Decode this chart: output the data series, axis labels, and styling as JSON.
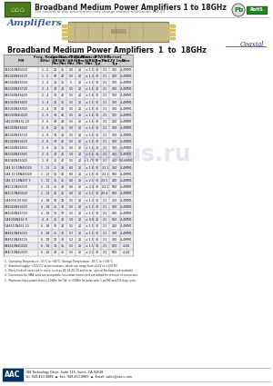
{
  "title_main": "Broadband Medium Power Amplifiers 1 to 18GHz",
  "subtitle": "The content of this specification may change without notification 101.09",
  "amplifiers_label": "Amplifiers",
  "coaxial_label": "Coaxial",
  "table_title": "Broadband Medium Power Amplifiers  1  to  18GHz",
  "rows": [
    [
      "CA1040N4S020",
      "1 - 2",
      "28",
      "35",
      "4.0",
      "20",
      "± 1.5",
      "30",
      "2:1",
      "300",
      "4L4MM1"
    ],
    [
      "CA2040N4S120",
      "1 - 2",
      "18",
      "24",
      "5.5",
      "20",
      "± 1.4",
      "30",
      "2:1",
      "200",
      "4L4MM1"
    ],
    [
      "CA2040N4S020",
      "2 - 4",
      "28",
      "35",
      "5",
      "20",
      "± 1.5",
      "30",
      "2:1",
      "300",
      "4L4MM1"
    ],
    [
      "CA2040N4S720",
      "2 - 4",
      "34",
      "41",
      "5.5",
      "20",
      "± 1.6",
      "30",
      "2:1",
      "300",
      "4L4MM1"
    ],
    [
      "CA2040N4S620",
      "2 - 4",
      "38",
      "46",
      "5.5",
      "20",
      "± 1.6",
      "30",
      "2:1",
      "300",
      "4L4MM1"
    ],
    [
      "CA2040N4S820",
      "2 - 4",
      "28",
      "35",
      "5.5",
      "20",
      "± 1.5",
      "30",
      "2:1",
      "300",
      "4L4MM1"
    ],
    [
      "CA2040N4S920",
      "2 - 4",
      "34",
      "41",
      "5.5",
      "20",
      "± 1.6",
      "30",
      "2:1",
      "300",
      "4L4MM1"
    ],
    [
      "CA2040N4G020",
      "2 - 6",
      "38",
      "46",
      "5.5",
      "20",
      "± 1.6",
      "30",
      "2:1",
      "300",
      "4L4MM1"
    ],
    [
      "CA2040N4S1 20",
      "2 - 6",
      "18",
      "24",
      "5.5",
      "20",
      "± 1.6",
      "30",
      "2:1",
      "200",
      "4L4MM1"
    ],
    [
      "CA2040N4S020",
      "2 - 8",
      "28",
      "35",
      "5.0",
      "20",
      "± 1.6",
      "30",
      "2:1",
      "300",
      "4L4MM1"
    ],
    [
      "CA2040N4S720",
      "2 - 8",
      "34",
      "41",
      "5.5",
      "20",
      "± 1.6",
      "30",
      "2:1",
      "300",
      "4L4MM1"
    ],
    [
      "CA2040N4S620",
      "2 - 8",
      "38",
      "46",
      "5.5",
      "20",
      "± 1.6",
      "30",
      "2:1",
      "300",
      "4L4MM1"
    ],
    [
      "CA2040N4S820",
      "2 - 8",
      "28",
      "35",
      "5.0",
      "20",
      "± 1.6",
      "30",
      "2:1",
      "300",
      "4L4MM1"
    ],
    [
      "CA2040N4S925",
      "2 - 8",
      "34",
      "41",
      "5.0",
      "20",
      "± 1.6",
      "30",
      "2:1",
      "400",
      "4L4MM1"
    ],
    [
      "CA4080N4S020",
      "1 - 8",
      "35",
      "40",
      "5.5",
      "20",
      "± 1.75",
      "50",
      "2:1",
      "450",
      "10L6MM1"
    ],
    [
      "CA4 10 10N4S020",
      "1 - 13",
      "25",
      "29",
      "6.0",
      "20",
      "± 1.6",
      "30",
      "2:2.1",
      "350",
      "4L4MM1"
    ],
    [
      "CA4 10 18N4S020",
      "1 - 13",
      "35",
      "40",
      "6.0",
      "20",
      "± 1.6",
      "30",
      "2:2.1",
      "500",
      "4L4MM1"
    ],
    [
      "CA4 10 18N4S7 5",
      "1 - 13",
      "35",
      "45",
      "6.0",
      "20",
      "± 2.5",
      "30",
      "2:2.5",
      "400",
      "4L4MM1"
    ],
    [
      "CA2C10N4S020",
      "2 - 13",
      "35",
      "40",
      "6.0",
      "20",
      "± 2.0",
      "30",
      "2:2.1",
      "500",
      "4L4MM1"
    ],
    [
      "CA2C10N4G020",
      "2 - 13",
      "40",
      "45",
      "6.0",
      "20",
      "± 2.1",
      "30",
      "2:0.4",
      "600",
      "4L4MM1"
    ],
    [
      "CA4030 20 S25",
      "4 - 18",
      "18",
      "24",
      "5.5",
      "20",
      "± 1.4",
      "30",
      "2:1",
      "250",
      "4L4MM1"
    ],
    [
      "CA4040N4S020",
      "4 - 18",
      "25",
      "31",
      "5.5",
      "20",
      "± 1.5",
      "30",
      "2:1",
      "300",
      "4L4MM1"
    ],
    [
      "CA4040N4S720",
      "4 - 18",
      "30",
      "37",
      "5.5",
      "20",
      "± 1.5",
      "30",
      "2:1",
      "400",
      "4L4MM1"
    ],
    [
      "CA4040N4S2 8",
      "4 - 8",
      "35",
      "40",
      "5.0",
      "20",
      "± 0.8",
      "20",
      "2:1",
      "650",
      "4L4MM1"
    ],
    [
      "CA4610N4S1 20",
      "6 - 18",
      "18",
      "24",
      "5.5",
      "20",
      "± 1.5",
      "30",
      "2:1",
      "200",
      "4L4MM1"
    ],
    [
      "CA4610N4S020",
      "6 - 18",
      "25",
      "30",
      "5.7",
      "20",
      "± 1.5",
      "30",
      "2:1",
      "300",
      "4L4MM1"
    ],
    [
      "CA4610N4S220",
      "6 - 18",
      "31",
      "38",
      "5.2",
      "20",
      "± 1.5",
      "30",
      "2:1",
      "300",
      "4L4MM1"
    ],
    [
      "CA4610N4G020",
      "6 - 18",
      "31",
      "35",
      "5.5",
      "20",
      "± 1.5",
      "30",
      "2:1",
      "600",
      "4L6S"
    ],
    [
      "CA4C10N4G020",
      "6 - 18",
      "40",
      "35",
      "5.5",
      "20",
      "± 2.2",
      "30",
      "2:1",
      "600",
      "4L44"
    ]
  ],
  "notes": [
    "1.  Operating Temperature: -55°C to +85°C; Storage Temperature: -65°C to +165°C",
    "2.  Standard supply: +12V DC at pin locations, which can range from ±12V to ±15V DC",
    "3.  Many kinds of cases are in stock, such as 04-04-40-30 and so on. special Packages are available.",
    "4.  Connectors for SMA used are acceptable. Insulation inserts and are added for removal of connectors.",
    "5.  Maximum Input power level is 20dBm for CW, or 30dBm for pulse with 1 μs PW and 1% duty cycle."
  ],
  "company_name": "188 Technology Drive, Suite 115, Irvine, CA 92618",
  "company_phone": "Tel: 949-453-9888  ◆  Fax: 949-453-9889  ◆  Email: sales@aacic.com",
  "bg_color": "#ffffff",
  "header_bg": "#d0d0d0",
  "alt_row_bg": "#e8e8f0",
  "table_border": "#888888",
  "title_color": "#333399",
  "header_color": "#000000",
  "watermark_color": "#aaaacc"
}
